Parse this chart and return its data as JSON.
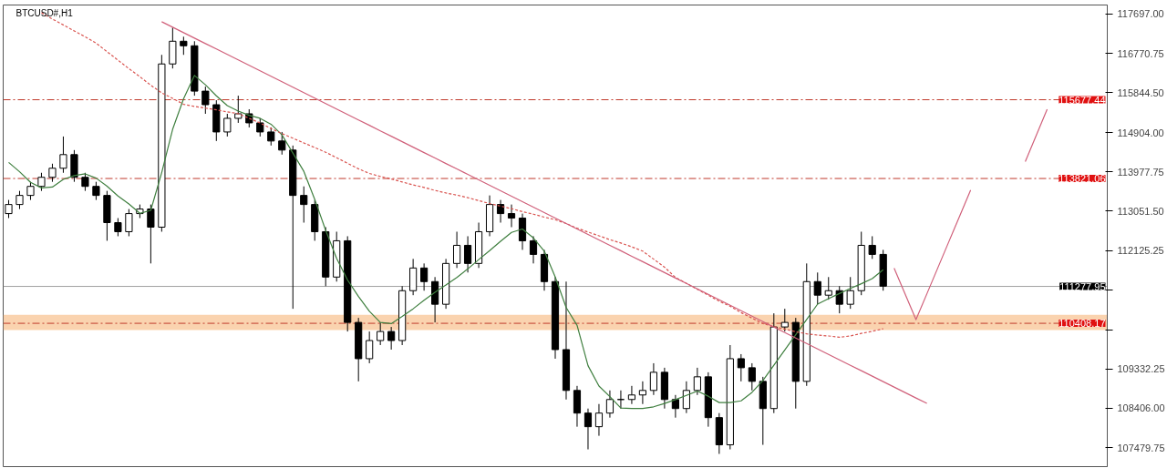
{
  "chart_data": {
    "type": "candlestick",
    "title": "BTCUSD#,H1",
    "categories": [
      null,
      null,
      null,
      null,
      null,
      null,
      null,
      null,
      null,
      null,
      null,
      null,
      null,
      null,
      null,
      null,
      null,
      null,
      null,
      null,
      null,
      null,
      null,
      null,
      null,
      null,
      null,
      null,
      null,
      null,
      null,
      null,
      null,
      null,
      null,
      null,
      null,
      null,
      null,
      null,
      null,
      null,
      null,
      null,
      null,
      null,
      null,
      null,
      null,
      null,
      null,
      null,
      null,
      null,
      null,
      null,
      null,
      null,
      null,
      null,
      null,
      null,
      null,
      null,
      null,
      null,
      null,
      null,
      null,
      null,
      null,
      null,
      null,
      null,
      null,
      null,
      null,
      null,
      null,
      null,
      null,
      null,
      null,
      null,
      null,
      null,
      null,
      null,
      null,
      null,
      null,
      null,
      null,
      null,
      null,
      null,
      null,
      null,
      null,
      null,
      null
    ],
    "ohlc": [
      [
        112994,
        113315,
        112888,
        113208
      ],
      [
        113208,
        113529,
        113101,
        113422
      ],
      [
        113422,
        113743,
        113315,
        113635
      ],
      [
        113635,
        113956,
        113529,
        113849
      ],
      [
        113849,
        114170,
        113743,
        114063
      ],
      [
        114063,
        114811,
        113956,
        114384
      ],
      [
        114384,
        114491,
        113743,
        113849
      ],
      [
        113849,
        113956,
        113529,
        113635
      ],
      [
        113635,
        113743,
        113315,
        113422
      ],
      [
        113422,
        113529,
        112353,
        112781
      ],
      [
        112781,
        112888,
        112460,
        112567
      ],
      [
        112567,
        113101,
        112460,
        112994
      ],
      [
        112994,
        113208,
        112888,
        113101
      ],
      [
        113101,
        113208,
        111819,
        112674
      ],
      [
        112674,
        116735,
        112567,
        116521
      ],
      [
        116521,
        117377,
        116414,
        117056
      ],
      [
        117056,
        117163,
        116735,
        116949
      ],
      [
        116949,
        117056,
        115773,
        115880
      ],
      [
        115880,
        115987,
        115346,
        115560
      ],
      [
        115560,
        115666,
        114705,
        114918
      ],
      [
        114918,
        115346,
        114811,
        115239
      ],
      [
        115239,
        115773,
        115132,
        115346
      ],
      [
        115346,
        115453,
        115025,
        115132
      ],
      [
        115132,
        115239,
        114811,
        114918
      ],
      [
        114918,
        115025,
        114598,
        114705
      ],
      [
        114705,
        114918,
        114384,
        114491
      ],
      [
        114491,
        114598,
        110750,
        113422
      ],
      [
        113422,
        113635,
        112781,
        113208
      ],
      [
        113208,
        113315,
        112353,
        112567
      ],
      [
        112567,
        112674,
        111284,
        111498
      ],
      [
        111498,
        112567,
        111391,
        112353
      ],
      [
        112353,
        112460,
        110215,
        110429
      ],
      [
        110429,
        110536,
        109040,
        109574
      ],
      [
        109574,
        110215,
        109467,
        110002
      ],
      [
        110002,
        110429,
        109895,
        110215
      ],
      [
        110215,
        110322,
        109788,
        110002
      ],
      [
        110002,
        111284,
        109895,
        111177
      ],
      [
        111177,
        111926,
        111071,
        111712
      ],
      [
        111712,
        111819,
        111177,
        111391
      ],
      [
        111391,
        111498,
        110429,
        110857
      ],
      [
        110857,
        111926,
        110750,
        111819
      ],
      [
        111819,
        112567,
        111712,
        112246
      ],
      [
        112246,
        112460,
        111605,
        111819
      ],
      [
        111819,
        112781,
        111712,
        112567
      ],
      [
        112567,
        113422,
        112460,
        113208
      ],
      [
        113208,
        113315,
        112781,
        112994
      ],
      [
        112994,
        113208,
        112674,
        112888
      ],
      [
        112888,
        112994,
        112139,
        112353
      ],
      [
        112353,
        112460,
        111819,
        112032
      ],
      [
        112032,
        112139,
        111177,
        111391
      ],
      [
        111391,
        111498,
        109574,
        109788
      ],
      [
        109788,
        111391,
        108612,
        108826
      ],
      [
        108826,
        108933,
        107971,
        108292
      ],
      [
        108292,
        108399,
        107437,
        107971
      ],
      [
        107971,
        108506,
        107757,
        108292
      ],
      [
        108292,
        108826,
        108185,
        108612
      ],
      [
        108612,
        108826,
        108399,
        108612
      ],
      [
        108612,
        108933,
        108506,
        108719
      ],
      [
        108719,
        109040,
        108506,
        108826
      ],
      [
        108826,
        109467,
        108719,
        109254
      ],
      [
        109254,
        109361,
        108399,
        108612
      ],
      [
        108612,
        108719,
        108185,
        108399
      ],
      [
        108399,
        109040,
        108292,
        108826
      ],
      [
        108826,
        109361,
        108719,
        109147
      ],
      [
        109147,
        109254,
        107971,
        108185
      ],
      [
        108185,
        108292,
        107330,
        107544
      ],
      [
        107544,
        109895,
        107437,
        109574
      ],
      [
        109574,
        109681,
        109040,
        109361
      ],
      [
        109361,
        109467,
        108826,
        109040
      ],
      [
        109040,
        109147,
        107544,
        108399
      ],
      [
        108399,
        110643,
        108292,
        110322
      ],
      [
        110322,
        110750,
        110215,
        110429
      ],
      [
        110429,
        110536,
        108399,
        109040
      ],
      [
        109040,
        111819,
        108933,
        111391
      ],
      [
        111391,
        111605,
        110857,
        111071
      ],
      [
        111071,
        111498,
        110964,
        111177
      ],
      [
        111177,
        111284,
        110643,
        110857
      ],
      [
        110857,
        111498,
        110750,
        111177
      ],
      [
        111177,
        112567,
        111071,
        112246
      ],
      [
        112246,
        112460,
        111926,
        112032
      ],
      [
        112032,
        112139,
        111177,
        111284
      ],
      null,
      null,
      null,
      null,
      null,
      null,
      null,
      null,
      null,
      null,
      null,
      null,
      null,
      null,
      null,
      null,
      null,
      null,
      null,
      null
    ],
    "series": [
      {
        "type": "line",
        "color": "#3f7f3f",
        "line_style": "solid",
        "values": [
          114200,
          113980,
          113730,
          113600,
          113620,
          113800,
          113890,
          113930,
          113830,
          113640,
          113410,
          113220,
          113000,
          113070,
          113960,
          114980,
          115700,
          116250,
          116030,
          115770,
          115540,
          115410,
          115310,
          115240,
          115100,
          114850,
          114420,
          113990,
          113330,
          112600,
          111940,
          111430,
          111040,
          110690,
          110430,
          110400,
          110570,
          110750,
          110950,
          111140,
          111310,
          111490,
          111690,
          111910,
          112120,
          112340,
          112550,
          112630,
          112420,
          112110,
          111500,
          110780,
          110360,
          109410,
          108930,
          108680,
          108410,
          108400,
          108400,
          108440,
          108520,
          108610,
          108710,
          108810,
          108690,
          108540,
          108540,
          108580,
          108780,
          109060,
          109420,
          109780,
          110140,
          110500,
          110860,
          110990,
          111110,
          111230,
          111340,
          111460,
          111670,
          null,
          null,
          null,
          null,
          null,
          null,
          null,
          null,
          null,
          null,
          null,
          null,
          null,
          null,
          null,
          null,
          null,
          null,
          null,
          null
        ]
      },
      {
        "type": "line",
        "color": "#d9534f",
        "line_style": "dotted",
        "values": [
          null,
          null,
          null,
          117730,
          117580,
          117440,
          117300,
          117160,
          117010,
          116810,
          116610,
          116410,
          116220,
          116020,
          115840,
          115710,
          115570,
          115520,
          115480,
          115440,
          115390,
          115350,
          115240,
          115130,
          115000,
          114880,
          114770,
          114660,
          114550,
          114440,
          114310,
          114180,
          114050,
          113940,
          113870,
          113810,
          113740,
          113670,
          113610,
          113540,
          113480,
          113430,
          113370,
          113300,
          113230,
          113170,
          113110,
          113040,
          112980,
          112910,
          112850,
          112760,
          112650,
          112560,
          112470,
          112380,
          112300,
          112210,
          112110,
          111920,
          111730,
          111490,
          111350,
          111210,
          111070,
          110930,
          110810,
          110660,
          110530,
          110400,
          110330,
          110270,
          110210,
          110160,
          110130,
          110110,
          110080,
          110110,
          110170,
          110220,
          110280,
          null,
          null,
          null,
          null,
          null,
          null,
          null,
          null,
          null,
          null,
          null,
          null,
          null,
          null,
          null,
          null,
          null,
          null,
          null,
          null
        ]
      },
      {
        "type": "line",
        "color": "#d0607a",
        "line_style": "solid",
        "values": [
          null,
          null,
          null,
          null,
          null,
          null,
          null,
          null,
          null,
          null,
          null,
          null,
          null,
          null,
          117515,
          117387,
          117258,
          117130,
          117001,
          116873,
          116744,
          116616,
          116487,
          116359,
          116230,
          116102,
          115973,
          115845,
          115716,
          115588,
          115459,
          115331,
          115202,
          115074,
          114945,
          114817,
          114688,
          114560,
          114431,
          114303,
          114174,
          114046,
          113917,
          113789,
          113660,
          113531,
          113403,
          113274,
          113146,
          113017,
          112889,
          112760,
          112632,
          112503,
          112375,
          112246,
          112118,
          111989,
          111861,
          111732,
          111604,
          111475,
          111347,
          111218,
          111090,
          110961,
          110833,
          110704,
          110576,
          110447,
          110319,
          110190,
          110062,
          109933,
          109805,
          109676,
          109548,
          109419,
          109291,
          109162,
          109034,
          108905,
          108777,
          108648,
          108520,
          null,
          null,
          null,
          null,
          null,
          null,
          null,
          null,
          null,
          null,
          null,
          null,
          null,
          null,
          null,
          null
        ]
      },
      {
        "type": "line",
        "color": "#d0607a",
        "line_style": "solid",
        "values": [
          null,
          null,
          null,
          null,
          null,
          null,
          null,
          null,
          null,
          null,
          null,
          null,
          null,
          null,
          null,
          null,
          null,
          null,
          null,
          null,
          null,
          null,
          null,
          null,
          null,
          null,
          null,
          null,
          null,
          null,
          null,
          null,
          null,
          null,
          null,
          null,
          null,
          null,
          null,
          null,
          null,
          null,
          null,
          null,
          null,
          null,
          null,
          null,
          null,
          null,
          null,
          null,
          null,
          null,
          null,
          null,
          null,
          null,
          null,
          null,
          null,
          null,
          null,
          null,
          null,
          null,
          null,
          null,
          null,
          null,
          null,
          null,
          null,
          null,
          null,
          null,
          null,
          null,
          null,
          null,
          null,
          111707,
          111100,
          110494,
          111105,
          111716,
          112328,
          112939,
          113550,
          null,
          null,
          null,
          null,
          114221,
          114836,
          115451,
          null,
          null,
          null,
          null,
          null
        ]
      }
    ],
    "ylim": [
      107030,
      117910
    ],
    "yticks": [
      {
        "value": 117697,
        "label": "117697.00"
      },
      {
        "value": 116770.75,
        "label": "116770.75"
      },
      {
        "value": 115844.5,
        "label": "115844.50"
      },
      {
        "value": 114904,
        "label": "114904.00"
      },
      {
        "value": 113977.75,
        "label": "113977.75"
      },
      {
        "value": 113051.5,
        "label": "113051.50"
      },
      {
        "value": 112125.25,
        "label": "112125.25"
      },
      {
        "value": 111199,
        "label": null
      },
      {
        "value": 110258.5,
        "label": null
      },
      {
        "value": 109332.25,
        "label": "109332.25"
      },
      {
        "value": 108406,
        "label": "108406.00"
      },
      {
        "value": 107479.75,
        "label": "107479.75"
      }
    ],
    "ref_lines": [
      {
        "axis": "y",
        "value": 115677.44,
        "label": "115677.44",
        "color": "#c0392b",
        "line_style": "dashed"
      },
      {
        "axis": "y",
        "value": 113821.06,
        "label": "113821.06",
        "color": "#c0392b",
        "line_style": "dashed"
      },
      {
        "axis": "y",
        "value": 110408.17,
        "label": "110408.17",
        "color": "#c0392b",
        "line_style": "dashed"
      },
      {
        "axis": "y",
        "value": 111277.95,
        "label": "111277.95",
        "color": "#a0a0a0",
        "line_style": "solid"
      }
    ],
    "bands": [
      {
        "axis": "y",
        "from": 110250,
        "to": 110610,
        "color": "#f9c89b"
      }
    ],
    "tick_labels": "y",
    "grid": false
  }
}
